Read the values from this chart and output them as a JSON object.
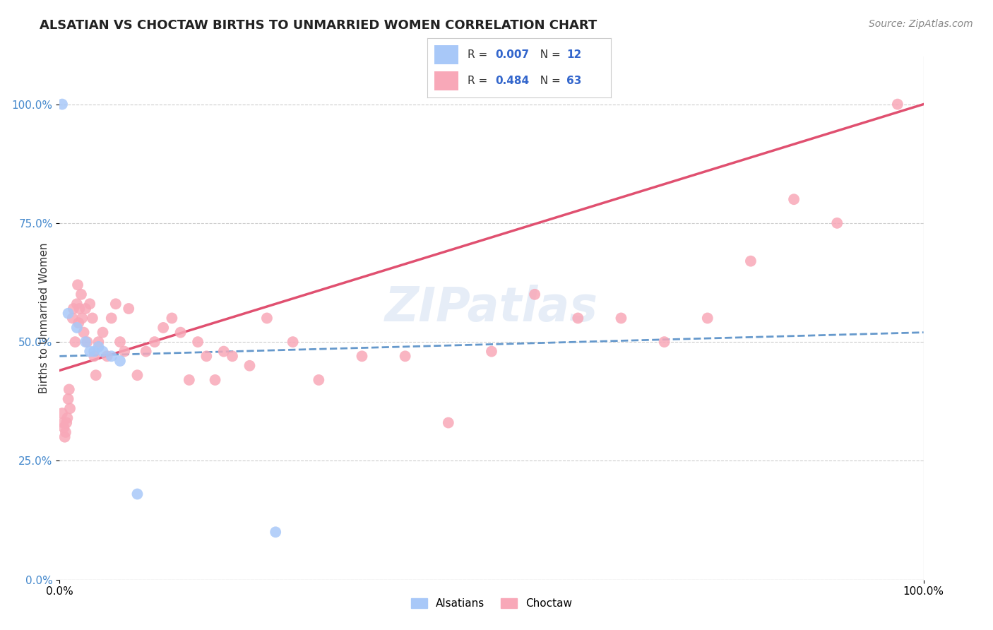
{
  "title": "ALSATIAN VS CHOCTAW BIRTHS TO UNMARRIED WOMEN CORRELATION CHART",
  "source": "Source: ZipAtlas.com",
  "ylabel": "Births to Unmarried Women",
  "watermark": "ZIPatlas",
  "alsatian_x": [
    0.3,
    1.0,
    2.0,
    3.0,
    3.5,
    4.0,
    4.5,
    5.0,
    6.0,
    7.0,
    9.0,
    25.0
  ],
  "alsatian_y": [
    100.0,
    56.0,
    53.0,
    50.0,
    48.0,
    48.0,
    49.0,
    48.0,
    47.0,
    46.0,
    18.0,
    10.0
  ],
  "choctaw_x": [
    0.3,
    0.4,
    0.5,
    0.6,
    0.7,
    0.8,
    0.9,
    1.0,
    1.1,
    1.2,
    1.5,
    1.6,
    1.8,
    2.0,
    2.1,
    2.2,
    2.3,
    2.5,
    2.6,
    2.8,
    3.0,
    3.2,
    3.5,
    3.8,
    4.0,
    4.2,
    4.5,
    5.0,
    5.5,
    6.0,
    6.5,
    7.0,
    7.5,
    8.0,
    9.0,
    10.0,
    11.0,
    12.0,
    13.0,
    14.0,
    15.0,
    16.0,
    17.0,
    18.0,
    19.0,
    20.0,
    22.0,
    24.0,
    27.0,
    30.0,
    35.0,
    40.0,
    45.0,
    50.0,
    55.0,
    60.0,
    65.0,
    70.0,
    75.0,
    80.0,
    85.0,
    90.0,
    97.0
  ],
  "choctaw_y": [
    35.0,
    33.0,
    32.0,
    30.0,
    31.0,
    33.0,
    34.0,
    38.0,
    40.0,
    36.0,
    55.0,
    57.0,
    50.0,
    58.0,
    62.0,
    54.0,
    57.0,
    60.0,
    55.0,
    52.0,
    57.0,
    50.0,
    58.0,
    55.0,
    47.0,
    43.0,
    50.0,
    52.0,
    47.0,
    55.0,
    58.0,
    50.0,
    48.0,
    57.0,
    43.0,
    48.0,
    50.0,
    53.0,
    55.0,
    52.0,
    42.0,
    50.0,
    47.0,
    42.0,
    48.0,
    47.0,
    45.0,
    55.0,
    50.0,
    42.0,
    47.0,
    47.0,
    33.0,
    48.0,
    60.0,
    55.0,
    55.0,
    50.0,
    55.0,
    67.0,
    80.0,
    75.0,
    100.0
  ],
  "alsatian_color": "#a8c8f8",
  "choctaw_color": "#f8a8b8",
  "alsatian_line_color": "#6699cc",
  "choctaw_line_color": "#e05070",
  "R_alsatian": 0.007,
  "N_alsatian": 12,
  "R_choctaw": 0.484,
  "N_choctaw": 63,
  "choctaw_line_y0": 44.0,
  "choctaw_line_y1": 100.0,
  "alsatian_line_y0": 47.0,
  "alsatian_line_y1": 52.0,
  "xmin": 0.0,
  "xmax": 100.0,
  "ymin": 0.0,
  "ymax": 110.0,
  "yticks": [
    0,
    25,
    50,
    75,
    100
  ],
  "ytick_labels": [
    "0.0%",
    "25.0%",
    "50.0%",
    "75.0%",
    "100.0%"
  ],
  "xtick_labels": [
    "0.0%",
    "100.0%"
  ],
  "background_color": "#ffffff",
  "grid_color": "#cccccc",
  "title_fontsize": 13,
  "label_fontsize": 11,
  "tick_fontsize": 11,
  "source_fontsize": 10,
  "legend_fontsize": 12,
  "watermark_fontsize": 48,
  "watermark_color": "#c8d8ee",
  "watermark_alpha": 0.45
}
